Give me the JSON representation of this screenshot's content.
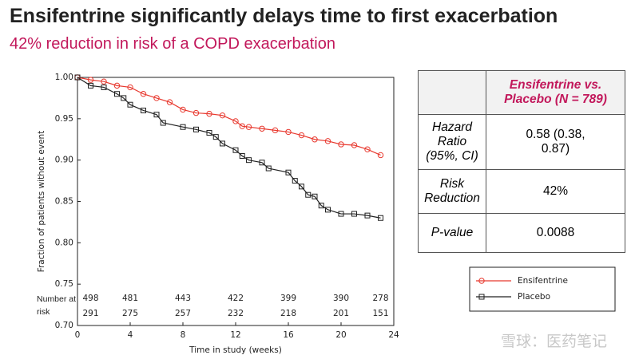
{
  "header": {
    "title": "Ensifentrine significantly delays time to first exacerbation",
    "subtitle": "42% reduction in risk of a COPD exacerbation"
  },
  "chart_data": {
    "type": "line",
    "step": true,
    "xlabel": "Time in study (weeks)",
    "ylabel": "Fraction of patients without event",
    "xlim": [
      0,
      24
    ],
    "xticks": [
      0,
      4,
      8,
      12,
      16,
      20,
      24
    ],
    "ylim": [
      0.7,
      1.0
    ],
    "yticks": [
      {
        "value": 0.7,
        "label": "0.70"
      },
      0.75,
      {
        "value": 0.8,
        "label": "0.80"
      },
      0.85,
      {
        "value": 0.9,
        "label": "0.90"
      },
      0.95,
      {
        "value": 1.0,
        "label": "1.00"
      }
    ],
    "series": [
      {
        "name": "Ensifentrine",
        "color": "#e8392f",
        "marker": "circle",
        "x": [
          0,
          1,
          2,
          3,
          4,
          5,
          6,
          7,
          8,
          9,
          10,
          11,
          12,
          12.5,
          13,
          14,
          15,
          16,
          17,
          18,
          19,
          20,
          21,
          22,
          23
        ],
        "values": [
          1.0,
          0.997,
          0.995,
          0.99,
          0.988,
          0.98,
          0.975,
          0.97,
          0.961,
          0.957,
          0.956,
          0.954,
          0.947,
          0.941,
          0.94,
          0.938,
          0.936,
          0.934,
          0.93,
          0.925,
          0.923,
          0.919,
          0.918,
          0.913,
          0.906
        ],
        "at_risk": [
          498,
          481,
          443,
          422,
          399,
          390,
          278
        ]
      },
      {
        "name": "Placebo",
        "color": "#222222",
        "marker": "square",
        "x": [
          0,
          1,
          2,
          3,
          3.5,
          4,
          5,
          6,
          6.5,
          8,
          9,
          10,
          10.5,
          11,
          12,
          12.5,
          13,
          14,
          14.5,
          16,
          16.5,
          17,
          17.5,
          18,
          18.5,
          19,
          20,
          21,
          22,
          23
        ],
        "values": [
          1.0,
          0.99,
          0.988,
          0.98,
          0.975,
          0.967,
          0.96,
          0.955,
          0.945,
          0.94,
          0.937,
          0.933,
          0.928,
          0.92,
          0.912,
          0.905,
          0.9,
          0.897,
          0.89,
          0.885,
          0.875,
          0.868,
          0.858,
          0.856,
          0.845,
          0.84,
          0.835,
          0.835,
          0.833,
          0.83
        ],
        "at_risk": [
          291,
          275,
          257,
          232,
          218,
          201,
          151
        ]
      }
    ],
    "at_risk_label": "Number at risk",
    "at_risk_x": [
      1,
      4,
      8,
      12,
      16,
      20,
      23
    ],
    "legend": "lower right"
  },
  "table": {
    "header": [
      "Ensifentrine vs. Placebo (N = 789)"
    ],
    "rows": [
      [
        "Hazard Ratio (95%, CI)",
        "0.58 (0.38, 0.87)"
      ],
      [
        "Risk Reduction",
        "42%"
      ],
      [
        "P-value",
        "0.0088"
      ]
    ]
  },
  "watermark": "雪球：医药笔记"
}
